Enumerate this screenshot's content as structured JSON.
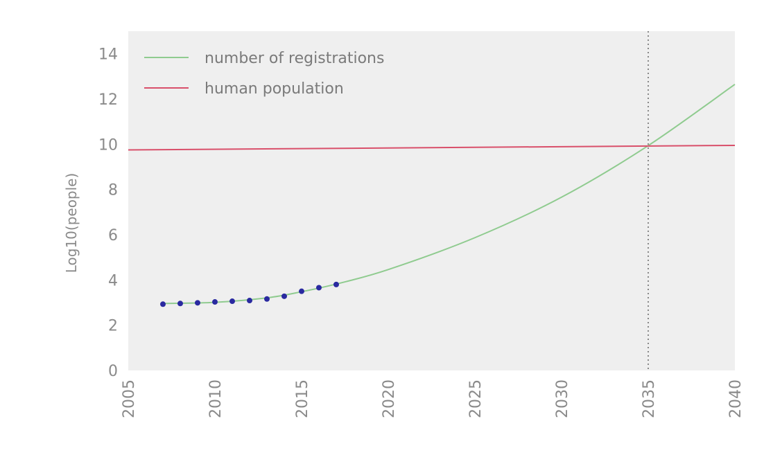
{
  "chart_data": {
    "type": "line",
    "title": "",
    "xlabel": "",
    "ylabel": "Log10(people)",
    "xlim": [
      2005,
      2040
    ],
    "ylim": [
      0,
      15
    ],
    "x_ticks": [
      "2005",
      "2010",
      "2015",
      "2020",
      "2025",
      "2030",
      "2035",
      "2040"
    ],
    "y_ticks": [
      "0",
      "2",
      "4",
      "6",
      "8",
      "10",
      "12",
      "14"
    ],
    "grid": false,
    "legend_position": "top-left",
    "colors": {
      "plot_background": "#efefef",
      "registrations": "#8fcb8f",
      "population": "#d94f6a",
      "points": "#2a2aa0",
      "vline": "#888888"
    },
    "series": [
      {
        "name": "number of registrations",
        "kind": "line",
        "x": [
          2007,
          2010,
          2013,
          2015,
          2017,
          2020,
          2025,
          2030,
          2035,
          2040
        ],
        "y": [
          2.96,
          3.01,
          3.21,
          3.48,
          3.82,
          4.46,
          5.87,
          7.66,
          9.94,
          12.65
        ]
      },
      {
        "name": "human population",
        "kind": "line",
        "x": [
          2005,
          2040
        ],
        "y": [
          9.75,
          9.95
        ]
      },
      {
        "kind": "scatter",
        "x": [
          2007,
          2008,
          2009,
          2010,
          2011,
          2012,
          2013,
          2014,
          2015,
          2016,
          2017
        ],
        "y": [
          2.93,
          2.96,
          2.99,
          3.03,
          3.06,
          3.09,
          3.16,
          3.28,
          3.5,
          3.66,
          3.8
        ]
      }
    ],
    "annotations": [
      {
        "type": "vline",
        "x": 2035,
        "style": "dotted"
      }
    ]
  }
}
